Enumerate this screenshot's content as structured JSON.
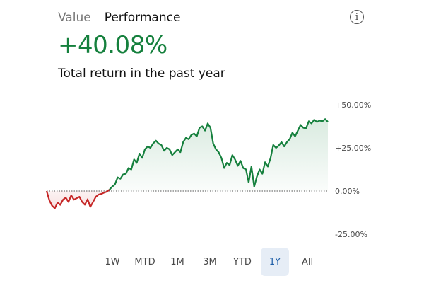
{
  "header": {
    "tab_value": "Value",
    "tab_performance": "Performance",
    "info_icon": "info-circle-icon",
    "info_glyph": "i"
  },
  "summary": {
    "return_value": "+40.08%",
    "description": "Total return in the past year"
  },
  "colors": {
    "positive": "#15803d",
    "negative": "#c62828"
  },
  "ranges": {
    "items": [
      "1W",
      "MTD",
      "1M",
      "3M",
      "YTD",
      "1Y",
      "All"
    ],
    "selected": "1Y"
  },
  "chart_data": {
    "type": "area",
    "ylim": [
      -25,
      50
    ],
    "yticks": [
      50,
      25,
      0,
      -25
    ],
    "ytick_labels": [
      "+50.00%",
      "+25.00%",
      "0.00%",
      "-25.00%"
    ],
    "baseline": 0,
    "grid": false,
    "values": [
      0.0,
      -5.4,
      -8.5,
      -10.0,
      -6.7,
      -8.0,
      -5.0,
      -3.8,
      -6.3,
      -2.5,
      -5.0,
      -4.2,
      -3.3,
      -6.3,
      -7.9,
      -4.8,
      -9.2,
      -6.3,
      -3.3,
      -2.1,
      -1.7,
      -1.0,
      -0.4,
      0.8,
      2.5,
      3.8,
      7.9,
      7.1,
      9.6,
      10.0,
      13.3,
      12.5,
      18.3,
      16.3,
      21.7,
      19.2,
      24.2,
      25.8,
      25.0,
      27.5,
      29.2,
      27.5,
      26.7,
      23.3,
      25.0,
      24.2,
      20.8,
      22.5,
      24.2,
      22.5,
      28.3,
      30.8,
      30.0,
      32.5,
      33.3,
      31.7,
      36.7,
      37.5,
      35.0,
      39.2,
      36.7,
      27.5,
      24.2,
      22.5,
      19.2,
      13.3,
      16.3,
      15.0,
      20.8,
      18.3,
      14.6,
      17.5,
      13.3,
      12.5,
      5.0,
      14.2,
      2.5,
      8.3,
      12.5,
      10.0,
      16.7,
      14.2,
      19.2,
      26.7,
      25.0,
      26.3,
      28.3,
      25.8,
      28.3,
      30.0,
      33.8,
      31.7,
      35.0,
      38.3,
      36.7,
      36.3,
      40.4,
      39.2,
      41.3,
      40.0,
      40.8,
      40.4,
      41.7,
      40.1
    ]
  }
}
